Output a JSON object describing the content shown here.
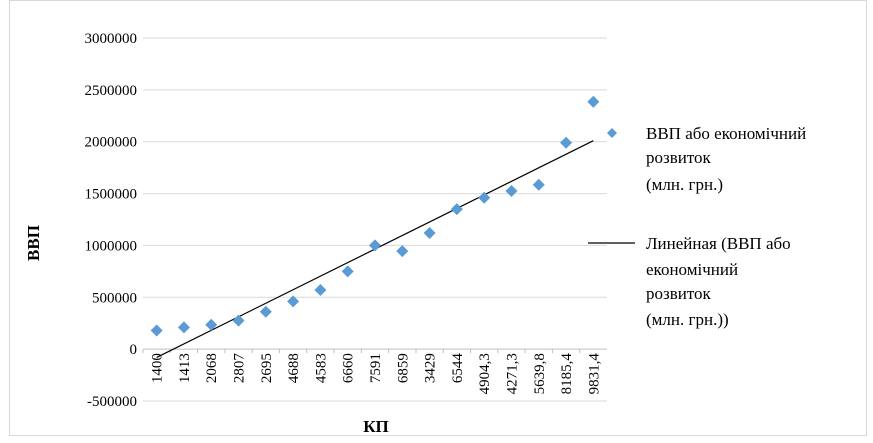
{
  "chart_data": {
    "type": "scatter",
    "xlabel": "КП",
    "ylabel": "ВВП",
    "ylim": [
      -500000,
      3000000
    ],
    "y_ticks": [
      "3000000",
      "2500000",
      "2000000",
      "1500000",
      "1000000",
      "500000",
      "0",
      "-500000"
    ],
    "categories": [
      "1400",
      "1413",
      "2068",
      "2807",
      "2695",
      "4688",
      "4583",
      "6660",
      "7591",
      "6859",
      "3429",
      "6544",
      "4904,3",
      "4271,3",
      "5639,8",
      "8185,4",
      "9831,4"
    ],
    "values": [
      180000,
      210000,
      235000,
      275000,
      360000,
      460000,
      570000,
      750000,
      1000000,
      945000,
      1120000,
      1350000,
      1460000,
      1525000,
      1585000,
      1990000,
      2385000
    ],
    "grid": true,
    "point_color": "#5b9bd5",
    "line_color": "#000000",
    "legend_position": "right",
    "series": [
      {
        "name_lines": [
          "ВВП або економічний",
          "розвиток",
          "(млн. грн.)"
        ]
      }
    ],
    "trendline": {
      "name_lines": [
        "Линейная (ВВП або",
        "економічний",
        "розвиток",
        "(млн. грн.))"
      ],
      "start_value": -80000,
      "end_value": 2010000
    }
  }
}
